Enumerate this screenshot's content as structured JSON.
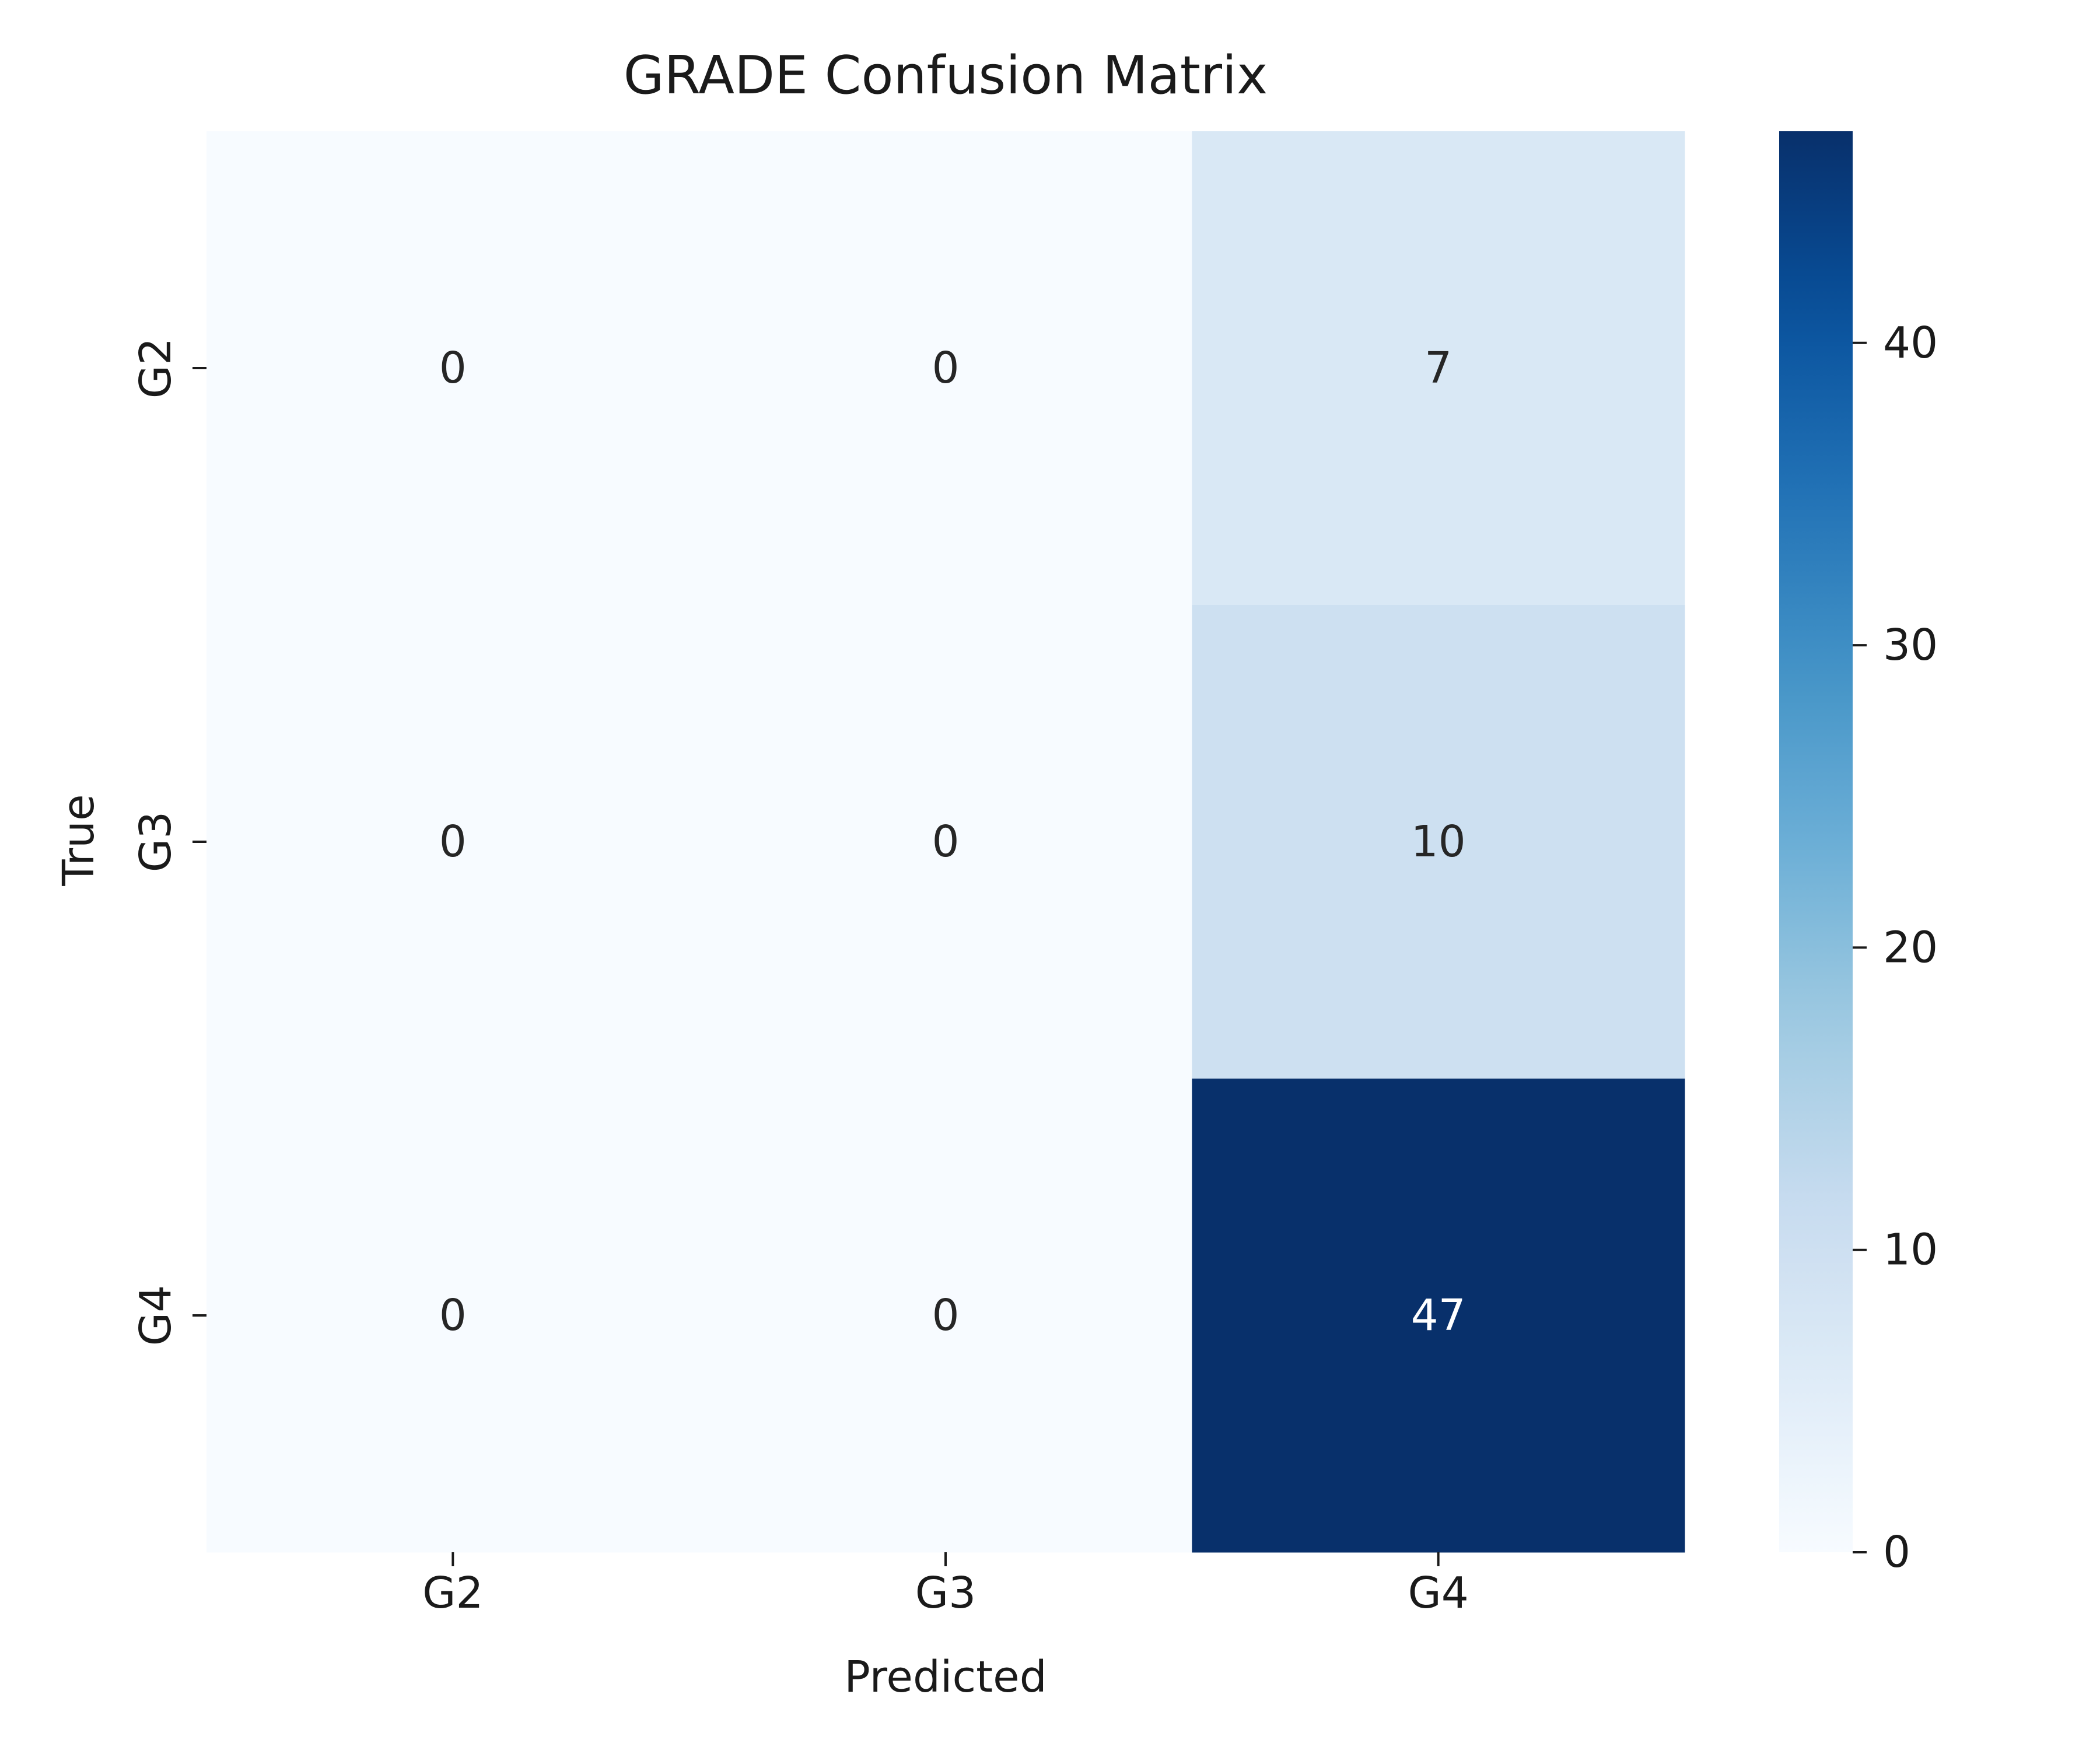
{
  "chart_data": {
    "type": "heatmap",
    "title": "GRADE Confusion Matrix",
    "xlabel": "Predicted",
    "ylabel": "True",
    "x_categories": [
      "G2",
      "G3",
      "G4"
    ],
    "y_categories": [
      "G2",
      "G3",
      "G4"
    ],
    "values": [
      [
        0,
        0,
        7
      ],
      [
        0,
        0,
        10
      ],
      [
        0,
        0,
        47
      ]
    ],
    "colormap": "Blues",
    "colorbar": {
      "range": [
        0,
        47
      ],
      "ticks": [
        0,
        10,
        20,
        30,
        40
      ]
    },
    "grid": false
  }
}
